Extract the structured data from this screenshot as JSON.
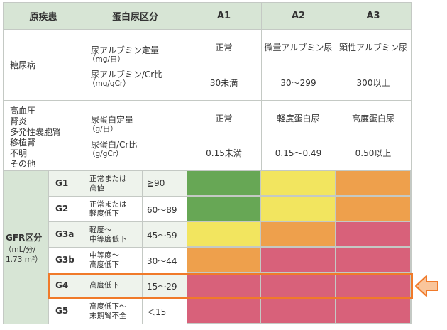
{
  "header": {
    "disease": "原疾患",
    "proteinuria": "蛋白尿区分",
    "a1": "A1",
    "a2": "A2",
    "a3": "A3"
  },
  "diabetes": {
    "label": "糖尿病",
    "item1_line1": "尿アルブミン定量",
    "item1_line2": "（mg/日）",
    "item2_line1": "尿アルブミン/Cr比",
    "item2_line2": "（mg/gCr）",
    "a1_name": "正常",
    "a2_name": "微量アルブミン尿",
    "a3_name": "顕性アルブミン尿",
    "a1_value": "30未満",
    "a2_value": "30〜299",
    "a3_value": "300以上"
  },
  "others": {
    "label_lines": [
      "高血圧",
      "腎炎",
      "多発性嚢胞腎",
      "移植腎",
      "不明",
      "その他"
    ],
    "item1_line1": "尿蛋白定量",
    "item1_line2": "（g/日）",
    "item2_line1": "尿蛋白/Cr比",
    "item2_line2": "（g/gCr）",
    "a1_name": "正常",
    "a2_name": "軽度蛋白尿",
    "a3_name": "高度蛋白尿",
    "a1_value": "0.15未満",
    "a2_value": "0.15〜0.49",
    "a3_value": "0.50以上"
  },
  "gfr": {
    "label_line1": "GFR区分",
    "label_line2": "（mL/分/",
    "label_line3": "1.73 m²）",
    "rows": [
      {
        "grade": "G1",
        "desc1": "正常または",
        "desc2": "高値",
        "range": "≧90",
        "colors": [
          "green",
          "yellow",
          "orange"
        ]
      },
      {
        "grade": "G2",
        "desc1": "正常または",
        "desc2": "軽度低下",
        "range": "60〜89",
        "colors": [
          "green",
          "yellow",
          "orange"
        ]
      },
      {
        "grade": "G3a",
        "desc1": "軽度〜",
        "desc2": "中等度低下",
        "range": "45〜59",
        "colors": [
          "yellow",
          "orange",
          "red"
        ]
      },
      {
        "grade": "G3b",
        "desc1": "中等度〜",
        "desc2": "高度低下",
        "range": "30〜44",
        "colors": [
          "orange",
          "red",
          "red"
        ]
      },
      {
        "grade": "G4",
        "desc1": "高度低下",
        "desc2": "",
        "range": "15〜29",
        "colors": [
          "red",
          "red",
          "red"
        ]
      },
      {
        "grade": "G5",
        "desc1": "高度低下〜",
        "desc2": "末期腎不全",
        "range": "＜15",
        "colors": [
          "red",
          "red",
          "red"
        ]
      }
    ],
    "highlighted_row": "G4"
  },
  "palette": {
    "green": "#67a755",
    "yellow": "#f2e55f",
    "orange": "#eea04c",
    "red": "#d8617a",
    "header": "#d7e5d5",
    "highlight": "#f07a2a"
  }
}
